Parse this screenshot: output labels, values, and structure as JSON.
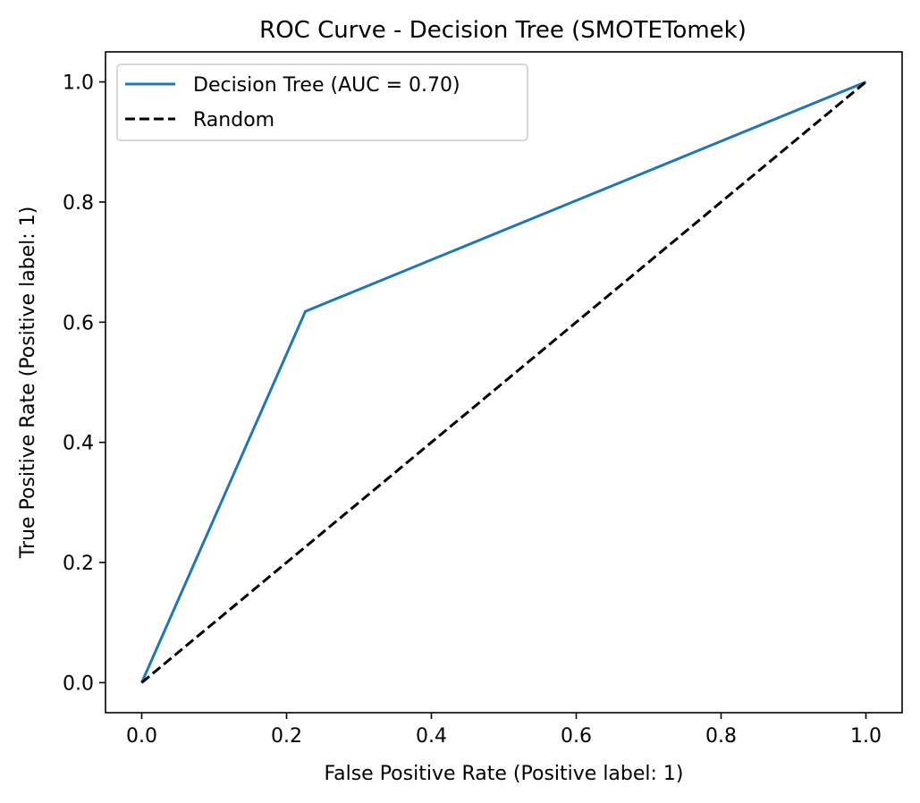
{
  "chart_data": {
    "type": "line",
    "title": "ROC Curve - Decision Tree (SMOTETomek)",
    "xlabel": "False Positive Rate (Positive label: 1)",
    "ylabel": "True Positive Rate (Positive label: 1)",
    "xlim": [
      -0.05,
      1.05
    ],
    "ylim": [
      -0.05,
      1.05
    ],
    "xticks": [
      "0.0",
      "0.2",
      "0.4",
      "0.6",
      "0.8",
      "1.0"
    ],
    "yticks": [
      "0.0",
      "0.2",
      "0.4",
      "0.6",
      "0.8",
      "1.0"
    ],
    "grid": false,
    "legend_position": "upper left",
    "series": [
      {
        "name": "Decision Tree (AUC = 0.70)",
        "color": "#1f77b4",
        "style": "solid",
        "x": [
          0.0,
          0.226,
          1.0
        ],
        "y": [
          0.0,
          0.618,
          1.0
        ]
      },
      {
        "name": "Random",
        "color": "#000000",
        "style": "dashed",
        "x": [
          0.0,
          1.0
        ],
        "y": [
          0.0,
          1.0
        ]
      }
    ]
  }
}
